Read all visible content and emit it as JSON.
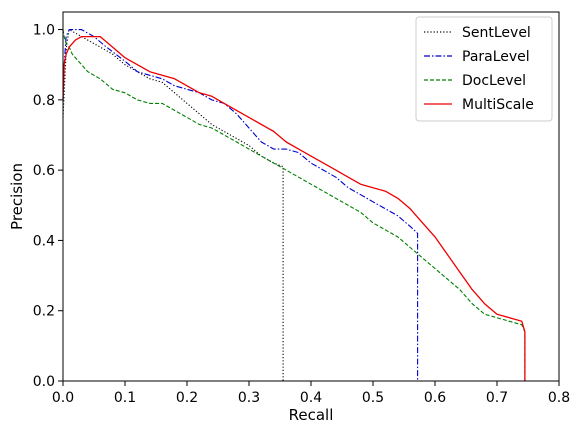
{
  "chart_data": {
    "type": "line",
    "title": "",
    "xlabel": "Recall",
    "ylabel": "Precision",
    "xlim": [
      0.0,
      0.8
    ],
    "ylim": [
      0.0,
      1.05
    ],
    "xticks": [
      "0.0",
      "0.1",
      "0.2",
      "0.3",
      "0.4",
      "0.5",
      "0.6",
      "0.7",
      "0.8"
    ],
    "yticks": [
      "0.0",
      "0.2",
      "0.4",
      "0.6",
      "0.8",
      "1.0"
    ],
    "grid": false,
    "legend_position": "top-right",
    "series": [
      {
        "name": "SentLevel",
        "color": "#000000",
        "dash": "dotted",
        "x": [
          0.0,
          0.002,
          0.004,
          0.006,
          0.01,
          0.02,
          0.03,
          0.04,
          0.06,
          0.08,
          0.1,
          0.12,
          0.14,
          0.16,
          0.18,
          0.2,
          0.22,
          0.24,
          0.26,
          0.28,
          0.3,
          0.32,
          0.34,
          0.355,
          0.355
        ],
        "y": [
          0.75,
          0.82,
          0.9,
          0.96,
          1.0,
          0.99,
          0.98,
          0.97,
          0.95,
          0.93,
          0.9,
          0.88,
          0.86,
          0.85,
          0.82,
          0.79,
          0.76,
          0.73,
          0.71,
          0.69,
          0.67,
          0.64,
          0.62,
          0.61,
          0.0
        ]
      },
      {
        "name": "ParaLevel",
        "color": "#0000cc",
        "dash": "dashdot",
        "x": [
          0.0,
          0.002,
          0.005,
          0.01,
          0.02,
          0.03,
          0.05,
          0.07,
          0.1,
          0.12,
          0.14,
          0.16,
          0.18,
          0.2,
          0.22,
          0.24,
          0.26,
          0.28,
          0.3,
          0.32,
          0.34,
          0.36,
          0.38,
          0.4,
          0.42,
          0.44,
          0.46,
          0.48,
          0.5,
          0.52,
          0.54,
          0.56,
          0.572,
          0.572
        ],
        "y": [
          0.8,
          0.9,
          0.98,
          1.0,
          1.0,
          1.0,
          0.98,
          0.95,
          0.91,
          0.88,
          0.87,
          0.86,
          0.84,
          0.83,
          0.82,
          0.8,
          0.79,
          0.76,
          0.72,
          0.68,
          0.66,
          0.66,
          0.65,
          0.62,
          0.6,
          0.58,
          0.55,
          0.53,
          0.51,
          0.49,
          0.47,
          0.44,
          0.42,
          0.0
        ]
      },
      {
        "name": "DocLevel",
        "color": "#008000",
        "dash": "dashed",
        "x": [
          0.0,
          0.002,
          0.005,
          0.01,
          0.015,
          0.02,
          0.03,
          0.04,
          0.05,
          0.06,
          0.08,
          0.1,
          0.12,
          0.14,
          0.16,
          0.18,
          0.2,
          0.22,
          0.24,
          0.26,
          0.28,
          0.3,
          0.32,
          0.34,
          0.36,
          0.38,
          0.4,
          0.42,
          0.44,
          0.46,
          0.48,
          0.5,
          0.52,
          0.54,
          0.56,
          0.58,
          0.6,
          0.62,
          0.64,
          0.66,
          0.68,
          0.7,
          0.72,
          0.74,
          0.745,
          0.745
        ],
        "y": [
          1.0,
          0.98,
          0.96,
          0.95,
          0.93,
          0.92,
          0.9,
          0.88,
          0.87,
          0.86,
          0.83,
          0.82,
          0.8,
          0.79,
          0.79,
          0.77,
          0.75,
          0.73,
          0.72,
          0.7,
          0.68,
          0.66,
          0.64,
          0.62,
          0.6,
          0.58,
          0.56,
          0.54,
          0.52,
          0.5,
          0.48,
          0.45,
          0.43,
          0.41,
          0.38,
          0.35,
          0.32,
          0.29,
          0.26,
          0.22,
          0.19,
          0.18,
          0.17,
          0.16,
          0.14,
          0.0
        ]
      },
      {
        "name": "MultiScale",
        "color": "#ee0000",
        "dash": "solid",
        "x": [
          0.0,
          0.002,
          0.005,
          0.01,
          0.02,
          0.03,
          0.04,
          0.06,
          0.08,
          0.1,
          0.12,
          0.14,
          0.16,
          0.18,
          0.2,
          0.22,
          0.24,
          0.26,
          0.28,
          0.3,
          0.32,
          0.34,
          0.36,
          0.38,
          0.4,
          0.42,
          0.44,
          0.46,
          0.48,
          0.5,
          0.52,
          0.54,
          0.56,
          0.58,
          0.6,
          0.62,
          0.64,
          0.66,
          0.68,
          0.7,
          0.72,
          0.74,
          0.745,
          0.745
        ],
        "y": [
          0.8,
          0.9,
          0.93,
          0.95,
          0.97,
          0.98,
          0.98,
          0.98,
          0.95,
          0.92,
          0.9,
          0.88,
          0.87,
          0.86,
          0.84,
          0.82,
          0.81,
          0.79,
          0.77,
          0.75,
          0.73,
          0.71,
          0.68,
          0.66,
          0.64,
          0.62,
          0.6,
          0.58,
          0.56,
          0.55,
          0.54,
          0.52,
          0.49,
          0.45,
          0.41,
          0.36,
          0.31,
          0.26,
          0.22,
          0.19,
          0.18,
          0.17,
          0.14,
          0.0
        ]
      }
    ]
  }
}
